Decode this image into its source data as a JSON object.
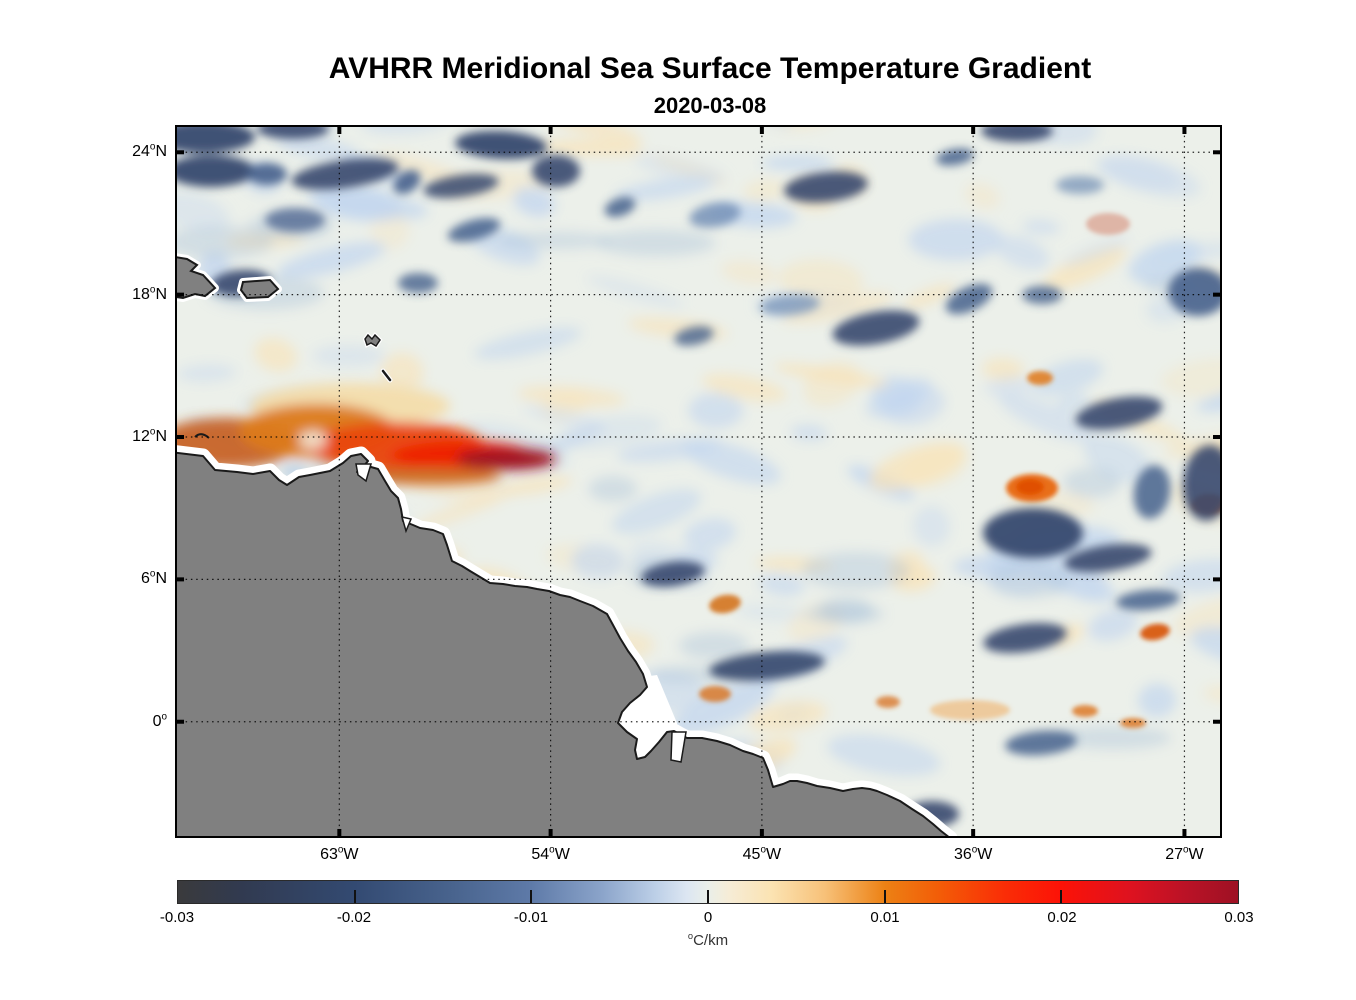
{
  "header": {
    "title": "AVHRR Meridional Sea Surface Temperature Gradient",
    "subtitle": "2020-03-08"
  },
  "chart_data": {
    "type": "heatmap",
    "title": "AVHRR Meridional Sea Surface Temperature Gradient",
    "date": "2020-03-08",
    "variable_unit": {
      "sup": "o",
      "text": "C/km"
    },
    "grid": "dotted graticule every 6 degrees latitude and 9 degrees longitude",
    "axes": {
      "lon_left_west": 70.0,
      "lon_right_west": 25.4,
      "lat_top": 25.15,
      "lat_bottom": -4.9,
      "xticks": [
        {
          "lon": 63,
          "num": "63",
          "suffix": "W"
        },
        {
          "lon": 54,
          "num": "54",
          "suffix": "W"
        },
        {
          "lon": 45,
          "num": "45",
          "suffix": "W"
        },
        {
          "lon": 36,
          "num": "36",
          "suffix": "W"
        },
        {
          "lon": 27,
          "num": "27",
          "suffix": "W"
        }
      ],
      "yticks": [
        {
          "lat": 24,
          "num": "24",
          "suffix": "N"
        },
        {
          "lat": 18,
          "num": "18",
          "suffix": "N"
        },
        {
          "lat": 12,
          "num": "12",
          "suffix": "N"
        },
        {
          "lat": 6,
          "num": "6",
          "suffix": "N"
        },
        {
          "lat": 0,
          "num": "0",
          "suffix": ""
        }
      ]
    },
    "colorbar": {
      "min": -0.03,
      "max": 0.03,
      "labels": [
        "-0.03",
        "-0.02",
        "-0.01",
        "0",
        "0.01",
        "0.02",
        "0.03"
      ],
      "stops": [
        {
          "at": 0.0,
          "color": "#3a3a3c"
        },
        {
          "at": 0.06,
          "color": "#313a50"
        },
        {
          "at": 0.167,
          "color": "#334a72"
        },
        {
          "at": 0.26,
          "color": "#49648e"
        },
        {
          "at": 0.333,
          "color": "#5e7aa8"
        },
        {
          "at": 0.4,
          "color": "#8ba4ca"
        },
        {
          "at": 0.45,
          "color": "#bccfe7"
        },
        {
          "at": 0.48,
          "color": "#dce6f2"
        },
        {
          "at": 0.5,
          "color": "#eaefe9"
        },
        {
          "at": 0.52,
          "color": "#f6ecd6"
        },
        {
          "at": 0.56,
          "color": "#fbe3b2"
        },
        {
          "at": 0.61,
          "color": "#f7c179"
        },
        {
          "at": 0.667,
          "color": "#ec8114"
        },
        {
          "at": 0.72,
          "color": "#f35b07"
        },
        {
          "at": 0.78,
          "color": "#fa2d06"
        },
        {
          "at": 0.833,
          "color": "#fc1207"
        },
        {
          "at": 0.9,
          "color": "#dd1220"
        },
        {
          "at": 0.95,
          "color": "#bb1226"
        },
        {
          "at": 1.0,
          "color": "#9e1124"
        }
      ]
    },
    "land_color": "#808080",
    "ocean_base_color": "#ecf0ea",
    "land_regions": [
      "northeastern South America (Venezuela to Brazil)",
      "Hispaniola",
      "Puerto Rico",
      "Lesser Antilles",
      "Trinidad"
    ],
    "notable_features": [
      "strong positive gradient patch (up to +0.03 oC/km) hugging the Venezuelan coast near 11-12N, 60-69W",
      "isolated positive patch (~+0.015 oC/km) near 10N 33.5W",
      "numerous negative (blue, -0.01 to -0.02 oC/km) filaments across the basin, densest north of 17N and near 8-10N 32-36W",
      "weak mottled field (+/-0.005 oC/km) elsewhere; white no-data band along all coasts"
    ]
  }
}
